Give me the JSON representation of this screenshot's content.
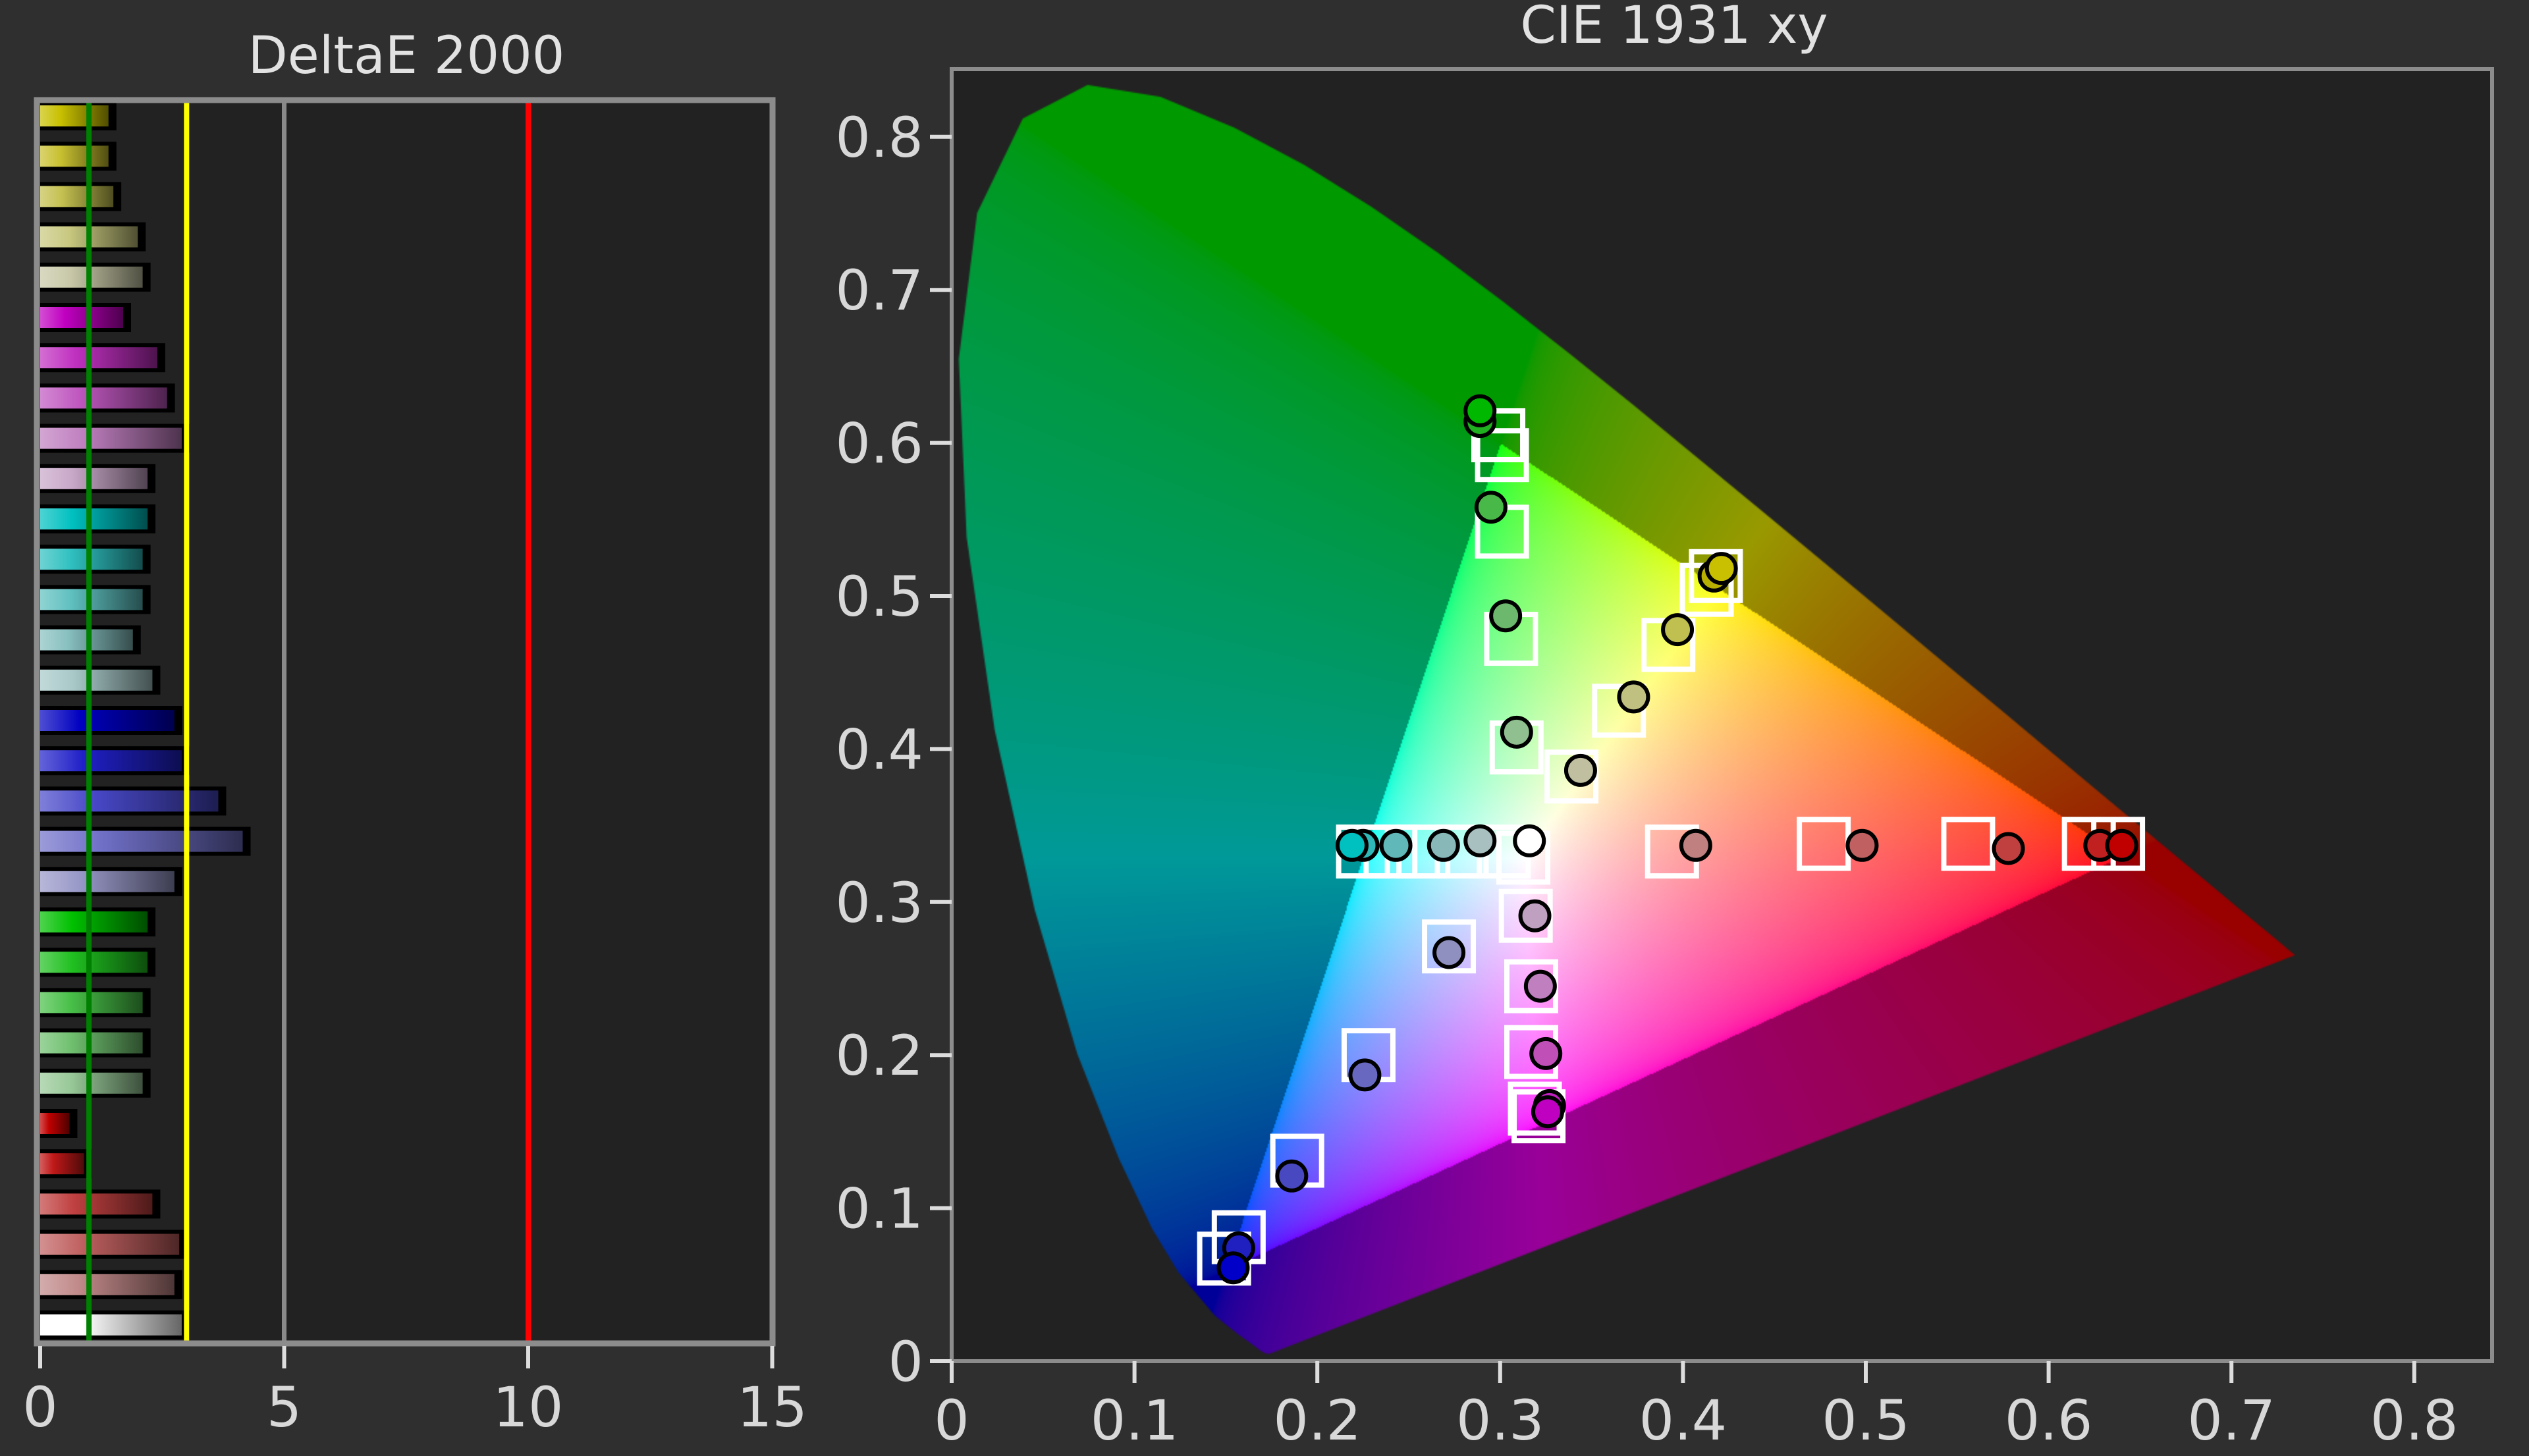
{
  "chart_data": [
    {
      "type": "bar",
      "orientation": "horizontal",
      "title": "DeltaE 2000",
      "xlim": [
        0,
        15
      ],
      "xticks": [
        "0",
        "5",
        "10",
        "15"
      ],
      "grid": false,
      "reference_lines": [
        {
          "value": 1,
          "color": "#008000"
        },
        {
          "value": 3,
          "color": "#ffff00"
        },
        {
          "value": 5,
          "color": "#8a8a8a"
        },
        {
          "value": 10,
          "color": "#ff0000"
        }
      ],
      "values": [
        1.4,
        1.4,
        1.5,
        2.0,
        2.1,
        1.7,
        2.4,
        2.6,
        2.9,
        2.2,
        2.2,
        2.1,
        2.1,
        1.9,
        2.3,
        2.75,
        2.9,
        3.65,
        4.15,
        2.75,
        2.2,
        2.2,
        2.1,
        2.1,
        2.1,
        0.6,
        0.9,
        2.3,
        2.85,
        2.75,
        2.9
      ],
      "colors": [
        "#c8c000",
        "#c8c030",
        "#c4c050",
        "#c8c880",
        "#c8c8a8",
        "#c000c0",
        "#c030c0",
        "#c058c0",
        "#c080c0",
        "#c8a8c8",
        "#00c0c0",
        "#30c0c0",
        "#60c0c0",
        "#88c0c0",
        "#a8c8c8",
        "#0000c0",
        "#2020c8",
        "#4848c8",
        "#7070c8",
        "#9898c8",
        "#00c000",
        "#20c020",
        "#48c048",
        "#70c070",
        "#98c898",
        "#c00000",
        "#c01818",
        "#c04040",
        "#c06060",
        "#c08888",
        "#ffffff"
      ]
    },
    {
      "type": "scatter",
      "title": "CIE 1931 xy",
      "xlim": [
        0,
        0.843
      ],
      "ylim": [
        0,
        0.844
      ],
      "xticks": [
        "0",
        "0.1",
        "0.2",
        "0.3",
        "0.4",
        "0.5",
        "0.6",
        "0.7",
        "0.8"
      ],
      "yticks": [
        "0",
        "0.1",
        "0.2",
        "0.3",
        "0.4",
        "0.5",
        "0.6",
        "0.7",
        "0.8"
      ],
      "grid": false,
      "gamut_triangle": [
        [
          0.64,
          0.33
        ],
        [
          0.3,
          0.6
        ],
        [
          0.15,
          0.06
        ]
      ],
      "white_point": [
        0.3127,
        0.329
      ],
      "targets": [
        {
          "x": 0.299,
          "y": 0.605
        },
        {
          "x": 0.301,
          "y": 0.592
        },
        {
          "x": 0.301,
          "y": 0.542
        },
        {
          "x": 0.306,
          "y": 0.472
        },
        {
          "x": 0.309,
          "y": 0.401
        },
        {
          "x": 0.418,
          "y": 0.513
        },
        {
          "x": 0.413,
          "y": 0.504
        },
        {
          "x": 0.392,
          "y": 0.468
        },
        {
          "x": 0.365,
          "y": 0.425
        },
        {
          "x": 0.339,
          "y": 0.382
        },
        {
          "x": 0.225,
          "y": 0.333
        },
        {
          "x": 0.24,
          "y": 0.333
        },
        {
          "x": 0.258,
          "y": 0.333
        },
        {
          "x": 0.279,
          "y": 0.333
        },
        {
          "x": 0.302,
          "y": 0.333
        },
        {
          "x": 0.3127,
          "y": 0.329
        },
        {
          "x": 0.394,
          "y": 0.333
        },
        {
          "x": 0.477,
          "y": 0.338
        },
        {
          "x": 0.556,
          "y": 0.338
        },
        {
          "x": 0.622,
          "y": 0.338
        },
        {
          "x": 0.638,
          "y": 0.338
        },
        {
          "x": 0.314,
          "y": 0.291
        },
        {
          "x": 0.317,
          "y": 0.245
        },
        {
          "x": 0.317,
          "y": 0.202
        },
        {
          "x": 0.319,
          "y": 0.165
        },
        {
          "x": 0.321,
          "y": 0.16
        },
        {
          "x": 0.272,
          "y": 0.271
        },
        {
          "x": 0.228,
          "y": 0.2
        },
        {
          "x": 0.189,
          "y": 0.131
        },
        {
          "x": 0.157,
          "y": 0.081
        },
        {
          "x": 0.149,
          "y": 0.067
        }
      ],
      "measured": [
        {
          "x": 0.289,
          "y": 0.614,
          "color": "#20b020"
        },
        {
          "x": 0.289,
          "y": 0.621,
          "color": "#00b800"
        },
        {
          "x": 0.295,
          "y": 0.558,
          "color": "#48b848"
        },
        {
          "x": 0.303,
          "y": 0.487,
          "color": "#6cb86c"
        },
        {
          "x": 0.309,
          "y": 0.411,
          "color": "#90c090"
        },
        {
          "x": 0.417,
          "y": 0.513,
          "color": "#b8b000"
        },
        {
          "x": 0.421,
          "y": 0.518,
          "color": "#c8c000"
        },
        {
          "x": 0.397,
          "y": 0.478,
          "color": "#c0c050"
        },
        {
          "x": 0.373,
          "y": 0.434,
          "color": "#c0c080"
        },
        {
          "x": 0.344,
          "y": 0.386,
          "color": "#c0c0a0"
        },
        {
          "x": 0.225,
          "y": 0.337,
          "color": "#30b8b8"
        },
        {
          "x": 0.219,
          "y": 0.337,
          "color": "#00c0c0"
        },
        {
          "x": 0.243,
          "y": 0.337,
          "color": "#60b8b8"
        },
        {
          "x": 0.269,
          "y": 0.337,
          "color": "#88b8b8"
        },
        {
          "x": 0.289,
          "y": 0.34,
          "color": "#a8c0c0"
        },
        {
          "x": 0.316,
          "y": 0.34,
          "color": "#ffffff"
        },
        {
          "x": 0.407,
          "y": 0.337,
          "color": "#c08080"
        },
        {
          "x": 0.498,
          "y": 0.337,
          "color": "#c06060"
        },
        {
          "x": 0.578,
          "y": 0.335,
          "color": "#c04040"
        },
        {
          "x": 0.628,
          "y": 0.337,
          "color": "#c02020"
        },
        {
          "x": 0.64,
          "y": 0.337,
          "color": "#c00000"
        },
        {
          "x": 0.319,
          "y": 0.291,
          "color": "#c0a0c0"
        },
        {
          "x": 0.322,
          "y": 0.245,
          "color": "#c080c0"
        },
        {
          "x": 0.325,
          "y": 0.201,
          "color": "#c050b8"
        },
        {
          "x": 0.327,
          "y": 0.167,
          "color": "#c020c0"
        },
        {
          "x": 0.326,
          "y": 0.163,
          "color": "#c000c0"
        },
        {
          "x": 0.272,
          "y": 0.267,
          "color": "#9090c0"
        },
        {
          "x": 0.226,
          "y": 0.187,
          "color": "#6868c0"
        },
        {
          "x": 0.186,
          "y": 0.121,
          "color": "#4848c0"
        },
        {
          "x": 0.157,
          "y": 0.074,
          "color": "#2020c0"
        },
        {
          "x": 0.154,
          "y": 0.061,
          "color": "#0000c8"
        }
      ]
    }
  ]
}
